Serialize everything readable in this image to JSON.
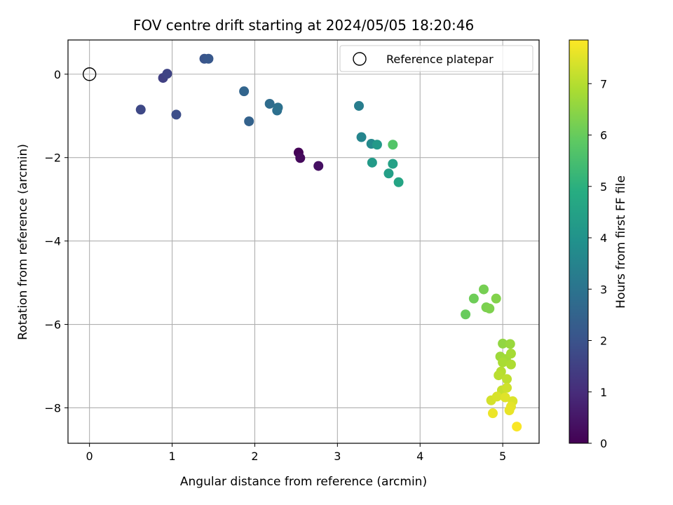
{
  "chart_data": {
    "type": "scatter",
    "title": "FOV centre drift starting at 2024/05/05 18:20:46",
    "xlabel": "Angular distance from reference (arcmin)",
    "ylabel": "Rotation from reference (arcmin)",
    "xlim": [
      -0.26,
      5.44
    ],
    "ylim": [
      -8.85,
      0.82
    ],
    "x_ticks": [
      0,
      1,
      2,
      3,
      4,
      5
    ],
    "y_ticks": [
      0,
      -2,
      -4,
      -6,
      -8
    ],
    "x_tick_labels": [
      "0",
      "1",
      "2",
      "3",
      "4",
      "5"
    ],
    "y_tick_labels": [
      "0",
      "−2",
      "−4",
      "−6",
      "−8"
    ],
    "grid": true,
    "legend": {
      "position": "top-right",
      "entries": [
        "Reference platepar"
      ]
    },
    "reference_point": {
      "x": 0,
      "y": 0
    },
    "colorbar": {
      "label": "Hours from first FF file",
      "min": 0,
      "max": 7.85,
      "ticks": [
        0,
        1,
        2,
        3,
        4,
        5,
        6,
        7
      ],
      "colormap": "viridis"
    },
    "points": [
      {
        "x": 2.53,
        "y": -1.88,
        "hours": 0.05
      },
      {
        "x": 2.55,
        "y": -2.01,
        "hours": 0.2
      },
      {
        "x": 2.77,
        "y": -2.2,
        "hours": 0.35
      },
      {
        "x": 0.89,
        "y": -0.09,
        "hours": 1.5
      },
      {
        "x": 0.94,
        "y": 0.01,
        "hours": 1.6
      },
      {
        "x": 0.62,
        "y": -0.85,
        "hours": 1.7
      },
      {
        "x": 1.05,
        "y": -0.97,
        "hours": 1.85
      },
      {
        "x": 1.39,
        "y": 0.37,
        "hours": 2.05
      },
      {
        "x": 1.44,
        "y": 0.37,
        "hours": 2.15
      },
      {
        "x": 1.87,
        "y": -0.41,
        "hours": 2.55
      },
      {
        "x": 1.93,
        "y": -1.13,
        "hours": 2.45
      },
      {
        "x": 2.18,
        "y": -0.71,
        "hours": 2.75
      },
      {
        "x": 2.27,
        "y": -0.87,
        "hours": 2.85
      },
      {
        "x": 2.28,
        "y": -0.8,
        "hours": 2.9
      },
      {
        "x": 3.26,
        "y": -0.76,
        "hours": 3.3
      },
      {
        "x": 3.29,
        "y": -1.51,
        "hours": 3.55
      },
      {
        "x": 3.41,
        "y": -1.67,
        "hours": 3.7
      },
      {
        "x": 3.48,
        "y": -1.69,
        "hours": 4.2
      },
      {
        "x": 3.42,
        "y": -2.12,
        "hours": 4.25
      },
      {
        "x": 3.62,
        "y": -2.38,
        "hours": 4.4
      },
      {
        "x": 3.67,
        "y": -2.15,
        "hours": 4.5
      },
      {
        "x": 3.74,
        "y": -2.59,
        "hours": 4.6
      },
      {
        "x": 3.67,
        "y": -1.69,
        "hours": 5.7
      },
      {
        "x": 4.55,
        "y": -5.76,
        "hours": 6.0
      },
      {
        "x": 4.65,
        "y": -5.38,
        "hours": 6.1
      },
      {
        "x": 4.77,
        "y": -5.16,
        "hours": 6.2
      },
      {
        "x": 4.8,
        "y": -5.59,
        "hours": 6.25
      },
      {
        "x": 4.84,
        "y": -5.62,
        "hours": 6.3
      },
      {
        "x": 4.92,
        "y": -5.38,
        "hours": 6.35
      },
      {
        "x": 5.0,
        "y": -6.46,
        "hours": 6.55
      },
      {
        "x": 5.09,
        "y": -6.47,
        "hours": 6.65
      },
      {
        "x": 4.97,
        "y": -6.77,
        "hours": 6.7
      },
      {
        "x": 5.04,
        "y": -6.83,
        "hours": 6.75
      },
      {
        "x": 5.1,
        "y": -6.7,
        "hours": 6.8
      },
      {
        "x": 5.0,
        "y": -6.91,
        "hours": 6.85
      },
      {
        "x": 5.1,
        "y": -6.96,
        "hours": 6.9
      },
      {
        "x": 4.98,
        "y": -7.13,
        "hours": 7.0
      },
      {
        "x": 4.95,
        "y": -7.22,
        "hours": 7.05
      },
      {
        "x": 5.05,
        "y": -7.31,
        "hours": 7.1
      },
      {
        "x": 4.99,
        "y": -7.58,
        "hours": 7.2
      },
      {
        "x": 5.05,
        "y": -7.52,
        "hours": 7.3
      },
      {
        "x": 4.86,
        "y": -7.82,
        "hours": 7.35
      },
      {
        "x": 4.93,
        "y": -7.73,
        "hours": 7.4
      },
      {
        "x": 5.03,
        "y": -7.75,
        "hours": 7.5
      },
      {
        "x": 5.12,
        "y": -7.84,
        "hours": 7.45
      },
      {
        "x": 5.1,
        "y": -7.97,
        "hours": 7.55
      },
      {
        "x": 5.08,
        "y": -8.06,
        "hours": 7.6
      },
      {
        "x": 4.88,
        "y": -8.13,
        "hours": 7.65
      },
      {
        "x": 5.17,
        "y": -8.45,
        "hours": 7.8
      }
    ]
  }
}
